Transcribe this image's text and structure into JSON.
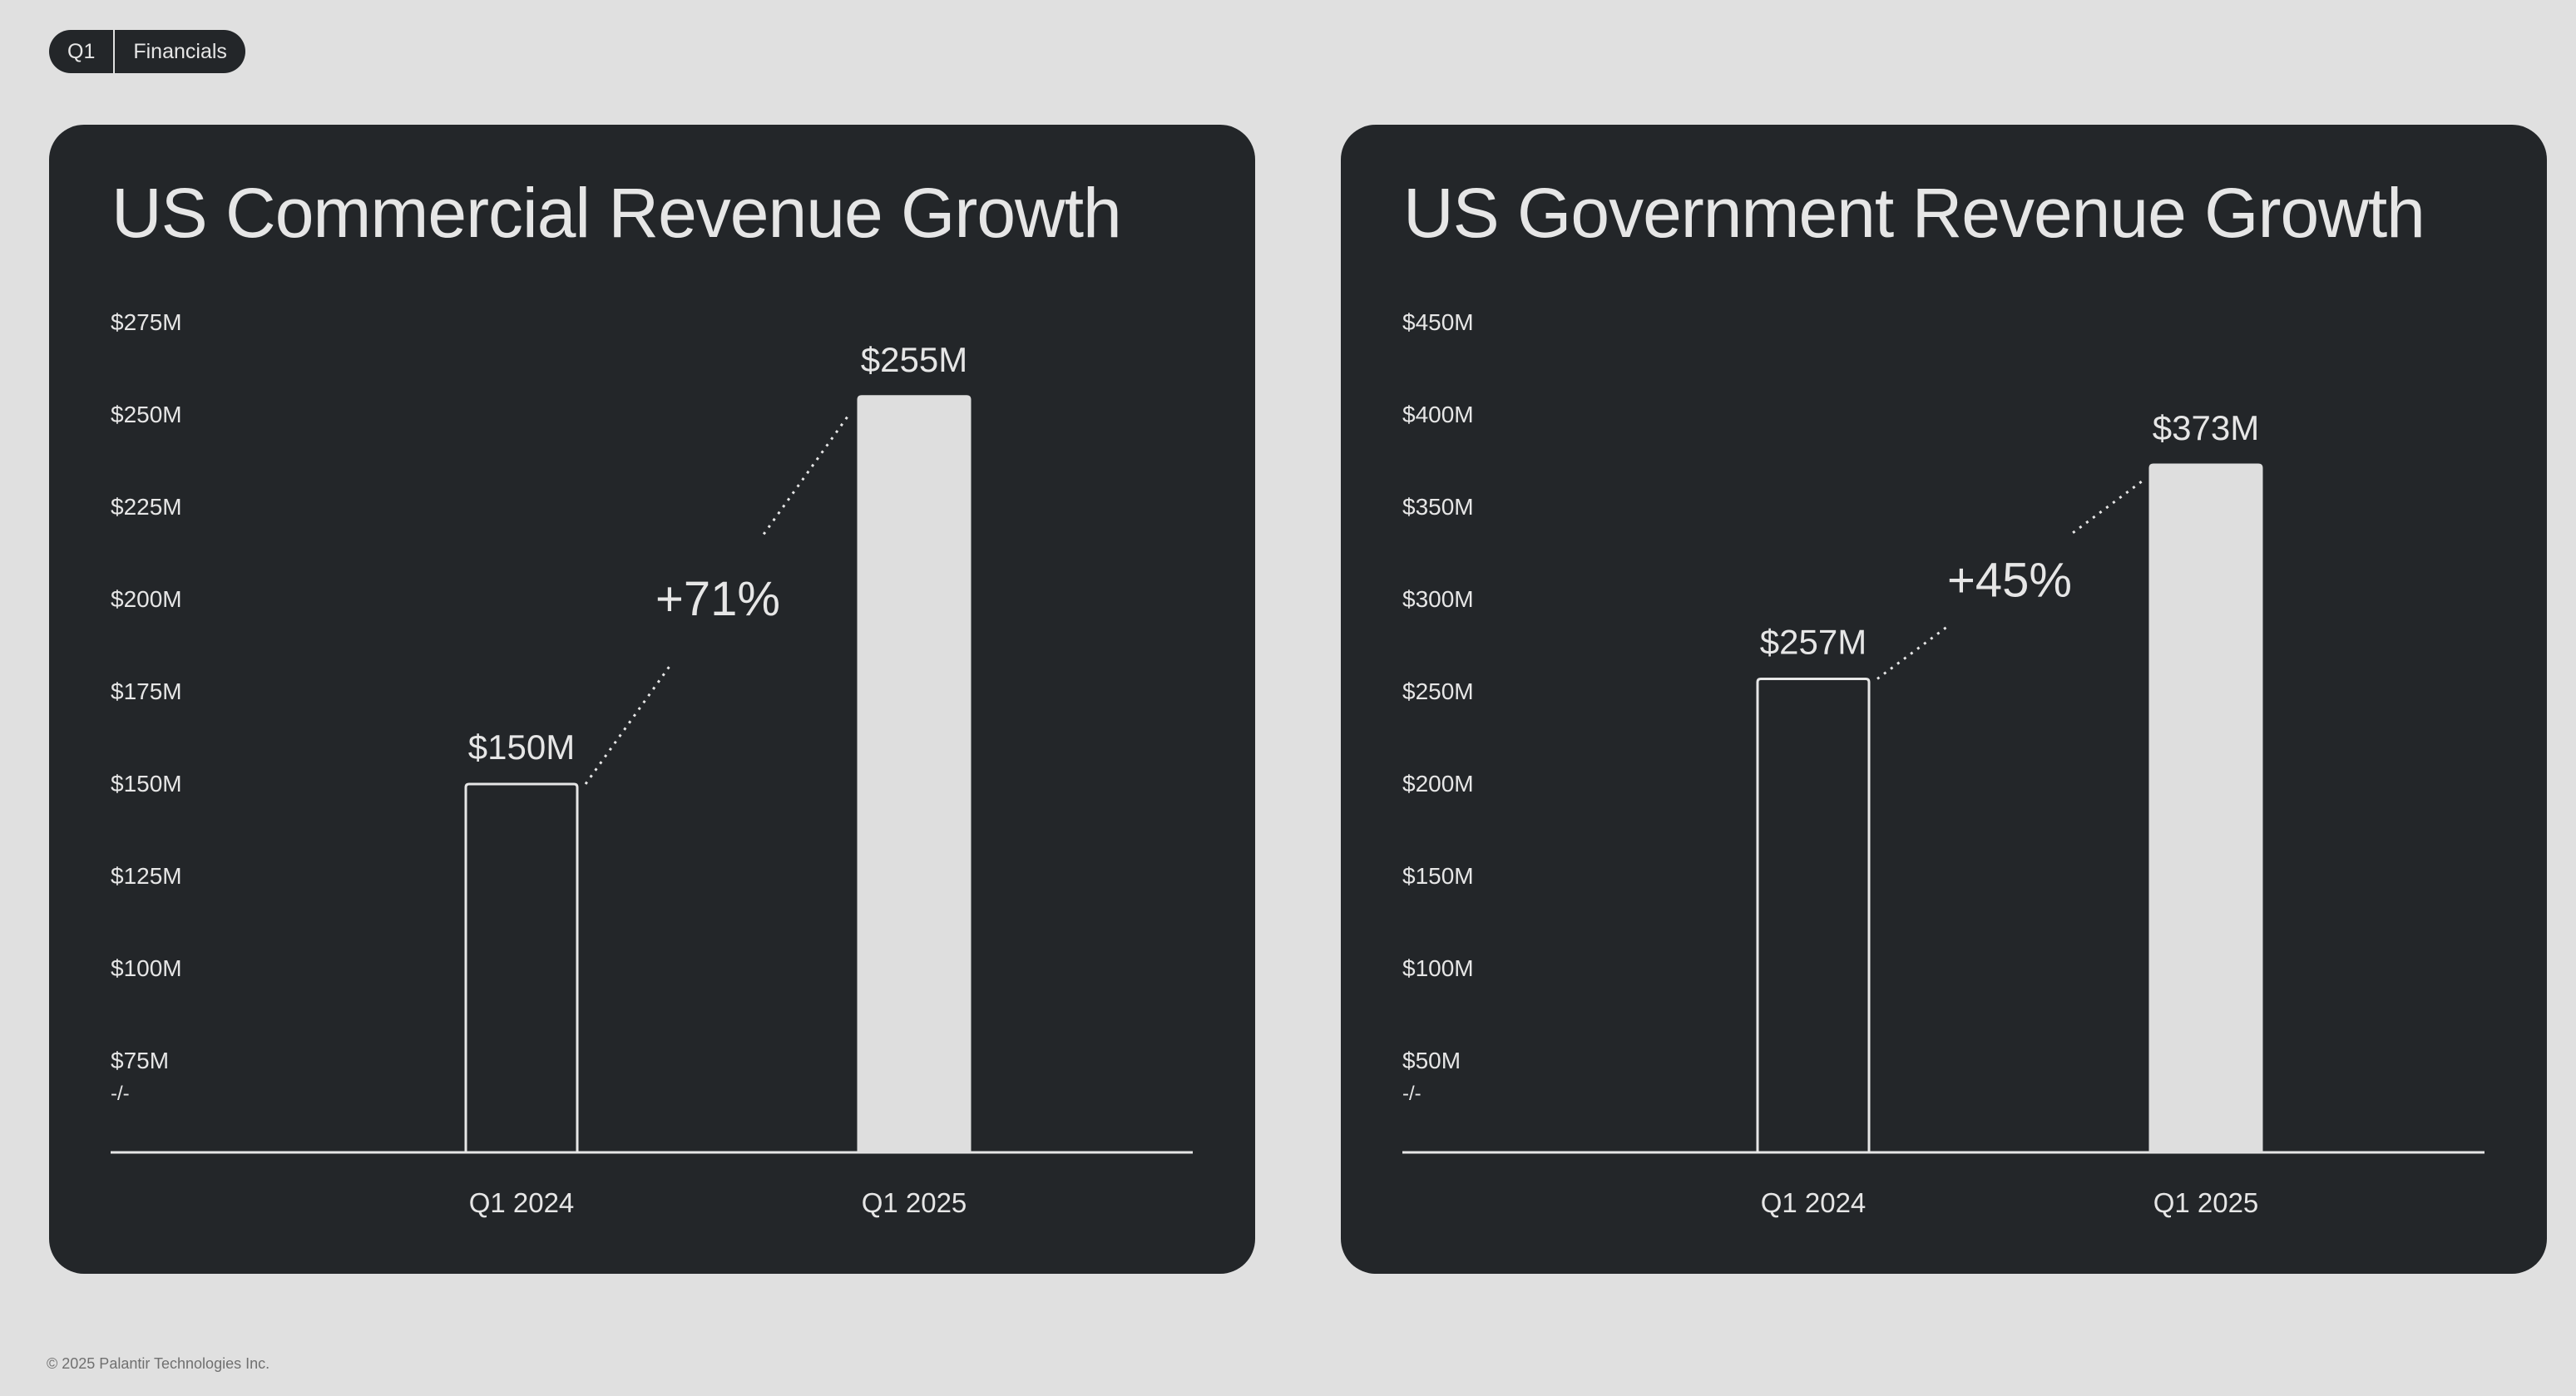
{
  "breadcrumb": {
    "section": "Q1",
    "page": "Financials"
  },
  "footer": "© 2025 Palantir Technologies Inc.",
  "colors": {
    "background": "#e0e0e0",
    "card": "#232629",
    "text": "#e6e6e6",
    "bar_fill": "#dedede",
    "bar_outline": "#e6e6e6"
  },
  "axis_break_symbol": "-/-",
  "chart_data": [
    {
      "type": "bar",
      "title": "US Commercial Revenue Growth",
      "categories": [
        "Q1 2024",
        "Q1 2025"
      ],
      "values": [
        150,
        255
      ],
      "data_labels": [
        "$150M",
        "$255M"
      ],
      "bar_styles": [
        "outline",
        "filled"
      ],
      "growth_label": "+71%",
      "yticks": [
        75,
        100,
        125,
        150,
        175,
        200,
        225,
        250,
        275
      ],
      "ytick_labels": [
        "$75M",
        "$100M",
        "$125M",
        "$150M",
        "$175M",
        "$200M",
        "$225M",
        "$250M",
        "$275M"
      ],
      "ylim": [
        75,
        275
      ],
      "axis_break": true,
      "grid": false,
      "unit": "$M"
    },
    {
      "type": "bar",
      "title": "US Government Revenue Growth",
      "categories": [
        "Q1 2024",
        "Q1 2025"
      ],
      "values": [
        257,
        373
      ],
      "data_labels": [
        "$257M",
        "$373M"
      ],
      "bar_styles": [
        "outline",
        "filled"
      ],
      "growth_label": "+45%",
      "yticks": [
        50,
        100,
        150,
        200,
        250,
        300,
        350,
        400,
        450
      ],
      "ytick_labels": [
        "$50M",
        "$100M",
        "$150M",
        "$200M",
        "$250M",
        "$300M",
        "$350M",
        "$400M",
        "$450M"
      ],
      "ylim": [
        50,
        450
      ],
      "axis_break": true,
      "grid": false,
      "unit": "$M"
    }
  ]
}
